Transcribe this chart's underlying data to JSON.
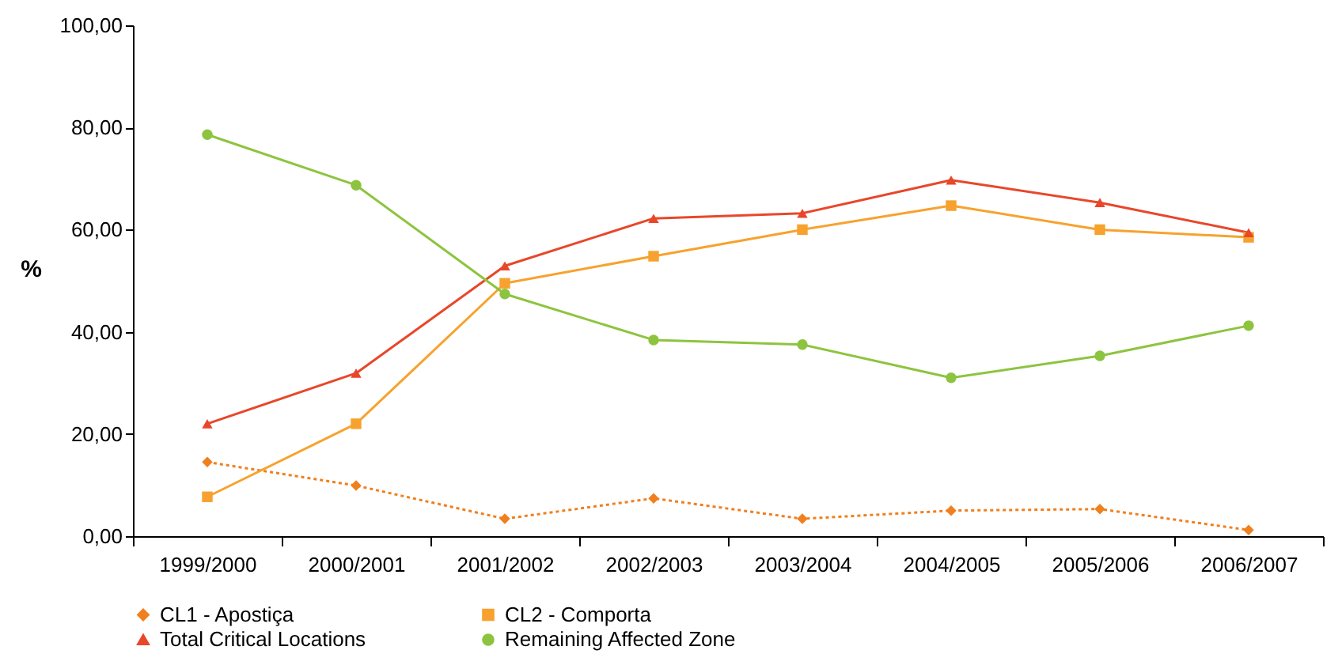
{
  "chart_data": {
    "type": "line",
    "ylabel": "%",
    "categories": [
      "1999/2000",
      "2000/2001",
      "2001/2002",
      "2002/2003",
      "2003/2004",
      "2004/2005",
      "2005/2006",
      "2006/2007"
    ],
    "series": [
      {
        "name": "CL1 - Apostiça",
        "color": "#f07f1e",
        "marker": "diamond",
        "line_style": "dotted",
        "values": [
          14.5,
          9.9,
          3.4,
          7.4,
          3.4,
          5.0,
          5.3,
          1.2
        ]
      },
      {
        "name": "CL2 - Comporta",
        "color": "#f7a22e",
        "marker": "square",
        "line_style": "solid",
        "values": [
          7.7,
          22.0,
          49.5,
          54.8,
          60.0,
          64.7,
          60.0,
          58.5
        ]
      },
      {
        "name": "Total Critical Locations",
        "color": "#e8472a",
        "marker": "triangle",
        "line_style": "solid",
        "values": [
          22.0,
          31.9,
          52.9,
          62.2,
          63.2,
          69.7,
          65.3,
          59.4
        ]
      },
      {
        "name": "Remaining Affected Zone",
        "color": "#8dc43f",
        "marker": "circle",
        "line_style": "solid",
        "values": [
          78.6,
          68.7,
          47.4,
          38.4,
          37.5,
          31.0,
          35.3,
          41.2
        ]
      }
    ],
    "ylim": [
      0,
      100
    ],
    "yticks": [
      {
        "value": 0,
        "label": "0,00"
      },
      {
        "value": 20,
        "label": "20,00"
      },
      {
        "value": 40,
        "label": "40,00"
      },
      {
        "value": 60,
        "label": "60,00"
      },
      {
        "value": 80,
        "label": "80,00"
      },
      {
        "value": 100,
        "label": "100,00"
      }
    ],
    "grid": false,
    "legend": "bottom"
  }
}
